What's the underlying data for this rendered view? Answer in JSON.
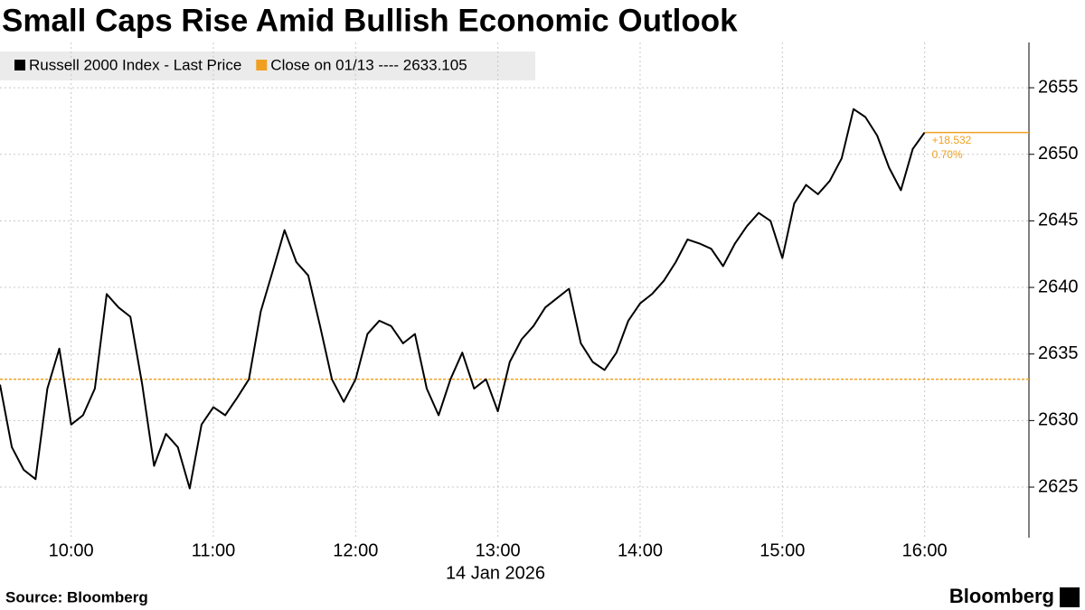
{
  "chart_data": {
    "type": "line",
    "title": "Small Caps Rise Amid Bullish Economic Outlook",
    "xlabel": "14 Jan 2026",
    "source": "Source: Bloomberg",
    "logo": "Bloomberg",
    "x": [
      "09:30",
      "09:35",
      "09:40",
      "09:45",
      "09:50",
      "09:55",
      "10:00",
      "10:05",
      "10:10",
      "10:15",
      "10:20",
      "10:25",
      "10:30",
      "10:35",
      "10:40",
      "10:45",
      "10:50",
      "10:55",
      "11:00",
      "11:05",
      "11:10",
      "11:15",
      "11:20",
      "11:25",
      "11:30",
      "11:35",
      "11:40",
      "11:45",
      "11:50",
      "11:55",
      "12:00",
      "12:05",
      "12:10",
      "12:15",
      "12:20",
      "12:25",
      "12:30",
      "12:35",
      "12:40",
      "12:45",
      "12:50",
      "12:55",
      "13:00",
      "13:05",
      "13:10",
      "13:15",
      "13:20",
      "13:25",
      "13:30",
      "13:35",
      "13:40",
      "13:45",
      "13:50",
      "13:55",
      "14:00",
      "14:05",
      "14:10",
      "14:15",
      "14:20",
      "14:25",
      "14:30",
      "14:35",
      "14:40",
      "14:45",
      "14:50",
      "14:55",
      "15:00",
      "15:05",
      "15:10",
      "15:15",
      "15:20",
      "15:25",
      "15:30",
      "15:35",
      "15:40",
      "15:45",
      "15:50",
      "15:55",
      "16:00"
    ],
    "series": [
      {
        "name": "Russell 2000 Index - Last Price",
        "color": "#000000",
        "values": [
          2632.7,
          2628.0,
          2626.3,
          2625.6,
          2632.4,
          2635.4,
          2629.7,
          2630.4,
          2632.4,
          2639.5,
          2638.5,
          2637.8,
          2632.7,
          2626.6,
          2629.0,
          2628.0,
          2624.9,
          2629.7,
          2631.0,
          2630.4,
          2631.7,
          2633.1,
          2638.2,
          2641.2,
          2644.3,
          2641.9,
          2640.9,
          2637.1,
          2633.1,
          2631.4,
          2633.1,
          2636.5,
          2637.5,
          2637.1,
          2635.8,
          2636.5,
          2632.4,
          2630.4,
          2633.1,
          2635.1,
          2632.4,
          2633.1,
          2630.7,
          2634.4,
          2636.1,
          2637.1,
          2638.5,
          2639.2,
          2639.9,
          2635.8,
          2634.4,
          2633.8,
          2635.1,
          2637.5,
          2638.8,
          2639.5,
          2640.5,
          2641.9,
          2643.6,
          2643.3,
          2642.9,
          2641.6,
          2643.3,
          2644.6,
          2645.6,
          2645.0,
          2642.2,
          2646.3,
          2647.7,
          2647.0,
          2648.0,
          2649.7,
          2653.4,
          2652.8,
          2651.4,
          2649.0,
          2647.3,
          2650.4,
          2651.637
        ]
      }
    ],
    "reference_line": {
      "label": "Close on 01/13 ---- 2633.105",
      "value": 2633.105,
      "color": "#f0a020"
    },
    "annotations": [
      "+18.532",
      "0.70%"
    ],
    "xlim": [
      "09:30",
      "16:44"
    ],
    "xticks": [
      "10:00",
      "11:00",
      "12:00",
      "13:00",
      "14:00",
      "15:00",
      "16:00"
    ],
    "ylim": [
      2621.2,
      2658.4
    ],
    "yticks": [
      2625,
      2630,
      2635,
      2640,
      2645,
      2650,
      2655
    ],
    "grid": true
  }
}
